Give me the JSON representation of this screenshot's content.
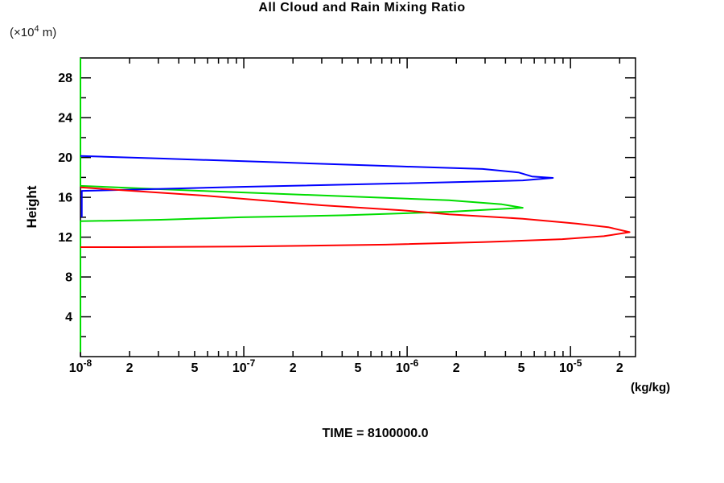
{
  "title": "All Cloud and Rain Mixing Ratio",
  "y_axis": {
    "unit_prefix": "(×10",
    "unit_exponent": "4",
    "unit_suffix": " m)",
    "axis_label": "Height"
  },
  "x_axis": {
    "unit_label": "(kg/kg)"
  },
  "footer": {
    "time_text": "TIME = 8100000.0"
  },
  "chart_data": {
    "type": "line",
    "title": "All Cloud and Rain Mixing Ratio",
    "xlabel": "(kg/kg)",
    "ylabel": "Height (×10^4 m)",
    "x_scale": "log",
    "x_min": 1e-08,
    "x_max": 2.5e-05,
    "y_min": 0,
    "y_max": 30,
    "y_major_step": 4,
    "y_minor_step": 2,
    "grid": false,
    "legend": "none",
    "y_tick_labels": [
      4,
      8,
      12,
      16,
      20,
      24,
      28
    ],
    "x_tick_labels": [
      {
        "value": 1e-08,
        "base": "10",
        "exp": "-8"
      },
      {
        "value": 2e-08,
        "text": "2"
      },
      {
        "value": 5e-08,
        "text": "5"
      },
      {
        "value": 1e-07,
        "base": "10",
        "exp": "-7"
      },
      {
        "value": 2e-07,
        "text": "2"
      },
      {
        "value": 5e-07,
        "text": "5"
      },
      {
        "value": 1e-06,
        "base": "10",
        "exp": "-6"
      },
      {
        "value": 2e-06,
        "text": "2"
      },
      {
        "value": 5e-06,
        "text": "5"
      },
      {
        "value": 1e-05,
        "base": "10",
        "exp": "-5"
      },
      {
        "value": 2e-05,
        "text": "2"
      }
    ],
    "series": [
      {
        "name": "green-profile",
        "color": "#00dd00",
        "points": [
          [
            1e-08,
            30.0
          ],
          [
            1e-08,
            17.15
          ],
          [
            5.5e-08,
            16.65
          ],
          [
            4.2e-07,
            16.1
          ],
          [
            1.8e-06,
            15.7
          ],
          [
            3.8e-06,
            15.3
          ],
          [
            5.1e-06,
            14.95
          ],
          [
            1.8e-06,
            14.55
          ],
          [
            4.2e-07,
            14.2
          ],
          [
            9.6e-08,
            14.0
          ],
          [
            3.1e-08,
            13.75
          ],
          [
            1e-08,
            13.6
          ],
          [
            1e-08,
            0.45
          ]
        ]
      },
      {
        "name": "blue-profile",
        "color": "#0000ff",
        "points": [
          [
            1e-08,
            20.15
          ],
          [
            3.1e-08,
            19.9
          ],
          [
            1.7e-07,
            19.5
          ],
          [
            9.3e-07,
            19.1
          ],
          [
            2.9e-06,
            18.85
          ],
          [
            4.8e-06,
            18.5
          ],
          [
            5.8e-06,
            18.1
          ],
          [
            7.8e-06,
            17.95
          ],
          [
            5.1e-06,
            17.7
          ],
          [
            9.3e-07,
            17.4
          ],
          [
            9.6e-08,
            17.05
          ],
          [
            1.8e-08,
            16.75
          ],
          [
            1.02e-08,
            16.65
          ],
          [
            1.02e-08,
            14.0
          ]
        ]
      },
      {
        "name": "red-profile",
        "color": "#ff0000",
        "points": [
          [
            1e-08,
            17.0
          ],
          [
            5.5e-08,
            16.2
          ],
          [
            3e-07,
            15.2
          ],
          [
            9.3e-07,
            14.7
          ],
          [
            1.8e-06,
            14.3
          ],
          [
            5.1e-06,
            13.85
          ],
          [
            8.9e-06,
            13.5
          ],
          [
            1.1e-05,
            13.35
          ],
          [
            1.7e-05,
            13.0
          ],
          [
            2.3e-05,
            12.5
          ],
          [
            1.6e-05,
            12.1
          ],
          [
            8.9e-06,
            11.8
          ],
          [
            2.9e-06,
            11.5
          ],
          [
            7.4e-07,
            11.25
          ],
          [
            9.6e-08,
            11.05
          ],
          [
            2e-08,
            11.0
          ],
          [
            1e-08,
            11.0
          ]
        ]
      }
    ]
  }
}
